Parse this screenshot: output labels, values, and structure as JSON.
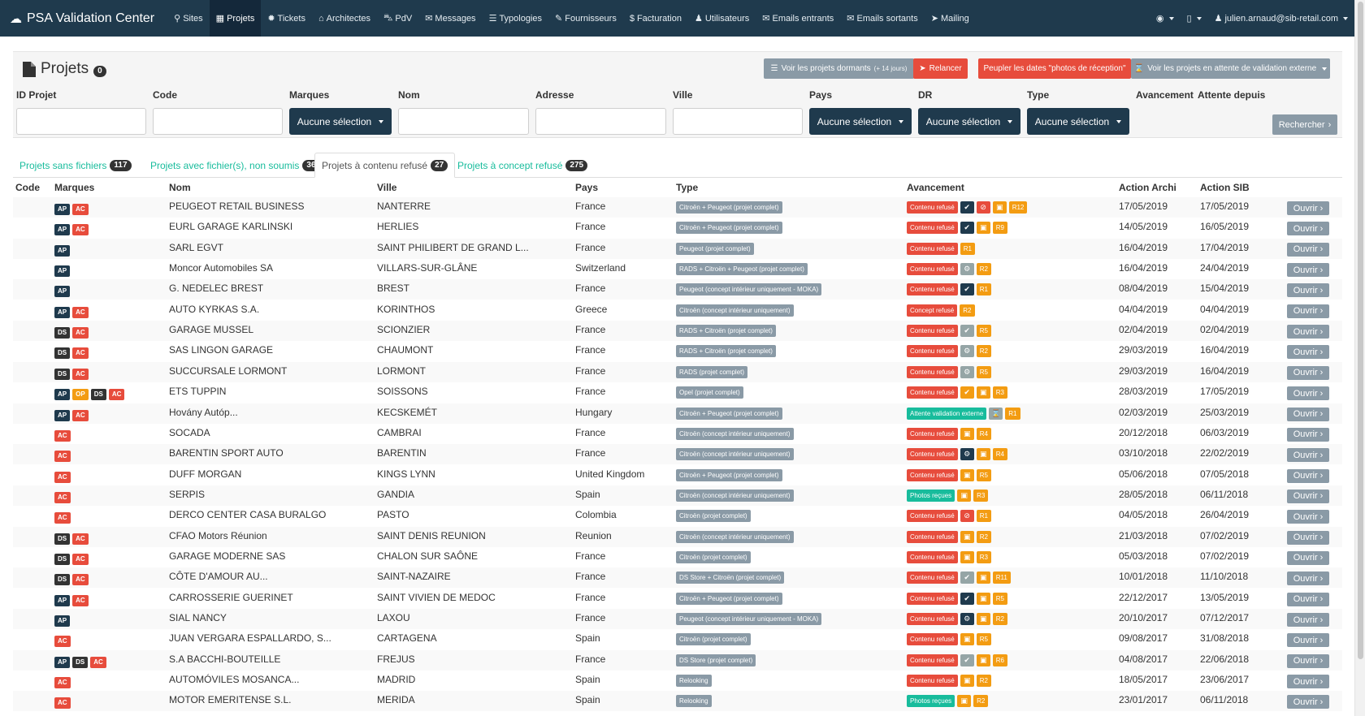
{
  "app": {
    "title": "PSA Validation Center"
  },
  "nav": {
    "items": [
      {
        "label": "Sites",
        "icon": "map-marker-icon",
        "glyph": "⚲"
      },
      {
        "label": "Projets",
        "icon": "table-icon",
        "glyph": "▦"
      },
      {
        "label": "Tickets",
        "icon": "ticket-icon",
        "glyph": "✹"
      },
      {
        "label": "Architectes",
        "icon": "university-icon",
        "glyph": "⌂"
      },
      {
        "label": "PdV",
        "icon": "car-icon",
        "glyph": "⛍"
      },
      {
        "label": "Messages",
        "icon": "comment-icon",
        "glyph": "✉"
      },
      {
        "label": "Typologies",
        "icon": "list-icon",
        "glyph": "☰"
      },
      {
        "label": "Fournisseurs",
        "icon": "wrench-icon",
        "glyph": "✎"
      },
      {
        "label": "Facturation",
        "icon": "dollar-icon",
        "glyph": "$"
      },
      {
        "label": "Utilisateurs",
        "icon": "user-icon",
        "glyph": "♟"
      },
      {
        "label": "Emails entrants",
        "icon": "envelope-in-icon",
        "glyph": "✉"
      },
      {
        "label": "Emails sortants",
        "icon": "envelope-out-icon",
        "glyph": "✉"
      },
      {
        "label": "Mailing",
        "icon": "paper-plane-icon",
        "glyph": "➤"
      }
    ],
    "eye_glyph": "◉",
    "mobile_glyph": "▯",
    "user_glyph": "♟",
    "user": "julien.arnaud@sib-retail.com"
  },
  "panel": {
    "title": "Projets",
    "count": "0",
    "btn_dormants": "Voir les projets dormants",
    "btn_dormants_note": "(+ 14 jours)",
    "btn_relancer": "Relancer",
    "btn_peupler": "Peupler les dates \"photos de réception\"",
    "btn_attente": "Voir les projets en attente de validation externe"
  },
  "filters": {
    "id_projet": "ID Projet",
    "code": "Code",
    "marques": "Marques",
    "nom": "Nom",
    "adresse": "Adresse",
    "ville": "Ville",
    "pays": "Pays",
    "dr": "DR",
    "type": "Type",
    "avancement": "Avancement",
    "attente": "Attente depuis",
    "select_placeholder": "Aucune sélection",
    "search_button": "Rechercher"
  },
  "tabs": [
    {
      "label": "Projets sans fichiers",
      "count": "117"
    },
    {
      "label": "Projets avec fichier(s), non soumis",
      "count": "36"
    },
    {
      "label": "Projets à contenu refusé",
      "count": "27"
    },
    {
      "label": "Projets à concept refusé",
      "count": "275"
    }
  ],
  "table": {
    "headers": {
      "code": "Code",
      "marques": "Marques",
      "nom": "Nom",
      "ville": "Ville",
      "pays": "Pays",
      "type": "Type",
      "avancement": "Avancement",
      "action_archi": "Action Archi",
      "action_sib": "Action SIB"
    },
    "open_label": "Ouvrir",
    "rows": [
      {
        "marques": [
          "AP",
          "AC"
        ],
        "nom": "PEUGEOT RETAIL BUSINESS",
        "ville": "NANTERRE",
        "pays": "France",
        "type": "Citroën + Peugeot (projet complet)",
        "status": "Contenu refusé",
        "status_color": "red",
        "icons": [
          "check",
          "ban",
          "image"
        ],
        "r": "R12",
        "archi": "17/05/2019",
        "sib": "17/05/2019"
      },
      {
        "marques": [
          "AP",
          "AC"
        ],
        "nom": "EURL GARAGE KARLINSKI",
        "ville": "HERLIES",
        "pays": "France",
        "type": "Citroën + Peugeot (projet complet)",
        "status": "Contenu refusé",
        "status_color": "red",
        "icons": [
          "check",
          "image"
        ],
        "r": "R9",
        "archi": "14/05/2019",
        "sib": "16/05/2019"
      },
      {
        "marques": [
          "AP"
        ],
        "nom": "SARL EGVT",
        "ville": "SAINT PHILIBERT DE GRAND L...",
        "pays": "France",
        "type": "Peugeot (projet complet)",
        "status": "Contenu refusé",
        "status_color": "red",
        "icons": [],
        "r": "R1",
        "archi": "16/04/2019",
        "sib": "17/04/2019"
      },
      {
        "marques": [
          "AP"
        ],
        "nom": "Moncor Automobiles SA",
        "ville": "VILLARS-SUR-GLÂNE",
        "pays": "Switzerland",
        "type": "RADS + Citroën + Peugeot (projet complet)",
        "status": "Contenu refusé",
        "status_color": "red",
        "icons": [
          "gear"
        ],
        "r": "R2",
        "archi": "16/04/2019",
        "sib": "24/04/2019"
      },
      {
        "marques": [
          "AP"
        ],
        "nom": "G. NEDELEC BREST",
        "ville": "BREST",
        "pays": "France",
        "type": "Peugeot (concept intérieur uniquement - MOKA)",
        "status": "Contenu refusé",
        "status_color": "red",
        "icons": [
          "check"
        ],
        "r": "R1",
        "archi": "08/04/2019",
        "sib": "15/04/2019"
      },
      {
        "marques": [
          "AP",
          "AC"
        ],
        "nom": "AUTO KYRKAS S.A.",
        "ville": "KORINTHOS",
        "pays": "Greece",
        "type": "Citroën (concept intérieur uniquement)",
        "status": "Concept refusé",
        "status_color": "red",
        "icons": [],
        "r": "R2",
        "archi": "04/04/2019",
        "sib": "04/04/2019"
      },
      {
        "marques": [
          "DS",
          "AC"
        ],
        "nom": "GARAGE MUSSEL",
        "ville": "SCIONZIER",
        "pays": "France",
        "type": "RADS + Citroën (projet complet)",
        "status": "Contenu refusé",
        "status_color": "red",
        "icons": [
          "check-gray"
        ],
        "r": "R5",
        "archi": "02/04/2019",
        "sib": "02/04/2019"
      },
      {
        "marques": [
          "DS",
          "AC"
        ],
        "nom": "SAS LINGON GARAGE",
        "ville": "CHAUMONT",
        "pays": "France",
        "type": "RADS + Citroën (projet complet)",
        "status": "Contenu refusé",
        "status_color": "red",
        "icons": [
          "gear"
        ],
        "r": "R2",
        "archi": "29/03/2019",
        "sib": "16/04/2019"
      },
      {
        "marques": [
          "DS",
          "AC"
        ],
        "nom": "SUCCURSALE LORMONT",
        "ville": "LORMONT",
        "pays": "France",
        "type": "RADS (projet complet)",
        "status": "Contenu refusé",
        "status_color": "red",
        "icons": [
          "gear"
        ],
        "r": "R5",
        "archi": "29/03/2019",
        "sib": "16/04/2019"
      },
      {
        "marques": [
          "AP",
          "OP",
          "DS",
          "AC"
        ],
        "nom": "ETS TUPPIN",
        "ville": "SOISSONS",
        "pays": "France",
        "type": "Opel (projet complet)",
        "status": "Contenu refusé",
        "status_color": "red",
        "icons": [
          "check-amber",
          "image"
        ],
        "r": "R3",
        "archi": "28/03/2019",
        "sib": "17/05/2019"
      },
      {
        "marques": [
          "AP",
          "AC"
        ],
        "nom": "Hovány Autóp...",
        "ville": "KECSKEMÉT",
        "pays": "Hungary",
        "type": "Citroën + Peugeot (projet complet)",
        "status": "Attente validation externe",
        "status_color": "green",
        "icons": [
          "hourglass"
        ],
        "r": "R1",
        "archi": "02/03/2019",
        "sib": "25/03/2019"
      },
      {
        "marques": [
          "AC"
        ],
        "nom": "SOCADA",
        "ville": "CAMBRAI",
        "pays": "France",
        "type": "Citroën (concept intérieur uniquement)",
        "status": "Contenu refusé",
        "status_color": "red",
        "icons": [
          "image"
        ],
        "r": "R4",
        "archi": "20/12/2018",
        "sib": "06/03/2019"
      },
      {
        "marques": [
          "AC"
        ],
        "nom": "BARENTIN SPORT AUTO",
        "ville": "BARENTIN",
        "pays": "France",
        "type": "Citroën (concept intérieur uniquement)",
        "status": "Contenu refusé",
        "status_color": "red",
        "icons": [
          "gear-navy",
          "image"
        ],
        "r": "R4",
        "archi": "03/10/2018",
        "sib": "22/02/2019"
      },
      {
        "marques": [
          "AC"
        ],
        "nom": "DUFF MORGAN",
        "ville": "KINGS LYNN",
        "pays": "United Kingdom",
        "type": "Citroën + Peugeot (projet complet)",
        "status": "Contenu refusé",
        "status_color": "red",
        "icons": [
          "image"
        ],
        "r": "R5",
        "archi": "05/06/2018",
        "sib": "07/05/2018"
      },
      {
        "marques": [
          "AC"
        ],
        "nom": "SERPIS",
        "ville": "GANDIA",
        "pays": "Spain",
        "type": "Citroën (concept intérieur uniquement)",
        "status": "Photos reçues",
        "status_color": "green",
        "icons": [
          "image"
        ],
        "r": "R3",
        "archi": "28/05/2018",
        "sib": "06/11/2018"
      },
      {
        "marques": [
          "AC"
        ],
        "nom": "DERCO CENTER CASA BURALGO",
        "ville": "PASTO",
        "pays": "Colombia",
        "type": "Citroën (projet complet)",
        "status": "Contenu refusé",
        "status_color": "red",
        "icons": [
          "ban"
        ],
        "r": "R1",
        "archi": "04/05/2018",
        "sib": "26/04/2019"
      },
      {
        "marques": [
          "DS",
          "AC"
        ],
        "nom": "CFAO Motors Réunion",
        "ville": "SAINT DENIS REUNION",
        "pays": "Reunion",
        "type": "Citroën (concept intérieur uniquement)",
        "status": "Contenu refusé",
        "status_color": "red",
        "icons": [
          "image"
        ],
        "r": "R2",
        "archi": "21/03/2018",
        "sib": "07/02/2019"
      },
      {
        "marques": [
          "DS",
          "AC"
        ],
        "nom": "GARAGE MODERNE SAS",
        "ville": "CHALON SUR SAÔNE",
        "pays": "France",
        "type": "Citroën (projet complet)",
        "status": "Contenu refusé",
        "status_color": "red",
        "icons": [
          "image"
        ],
        "r": "R3",
        "archi": "05/03/2018",
        "sib": "07/02/2019"
      },
      {
        "marques": [
          "DS",
          "AC"
        ],
        "nom": "CÔTE D'AMOUR AU...",
        "ville": "SAINT-NAZAIRE",
        "pays": "France",
        "type": "DS Store + Citroën (projet complet)",
        "status": "Contenu refusé",
        "status_color": "red",
        "icons": [
          "check-gray",
          "image"
        ],
        "r": "R11",
        "archi": "10/01/2018",
        "sib": "11/10/2018"
      },
      {
        "marques": [
          "AP",
          "AC"
        ],
        "nom": "CARROSSERIE GUERINET",
        "ville": "SAINT VIVIEN DE MEDOC",
        "pays": "France",
        "type": "Citroën + Peugeot (projet complet)",
        "status": "Contenu refusé",
        "status_color": "red",
        "icons": [
          "check",
          "image"
        ],
        "r": "R5",
        "archi": "22/12/2017",
        "sib": "13/05/2019"
      },
      {
        "marques": [
          "AP"
        ],
        "nom": "SIAL NANCY",
        "ville": "LAXOU",
        "pays": "France",
        "type": "Peugeot (concept intérieur uniquement - MOKA)",
        "status": "Contenu refusé",
        "status_color": "red",
        "icons": [
          "gear-navy",
          "image"
        ],
        "r": "R2",
        "archi": "20/10/2017",
        "sib": "07/12/2017"
      },
      {
        "marques": [
          "AC"
        ],
        "nom": "JUAN VERGARA ESPALLARDO, S...",
        "ville": "CARTAGENA",
        "pays": "Spain",
        "type": "Citroën (projet complet)",
        "status": "Contenu refusé",
        "status_color": "red",
        "icons": [
          "image"
        ],
        "r": "R5",
        "archi": "09/08/2017",
        "sib": "31/08/2018"
      },
      {
        "marques": [
          "AP",
          "DS",
          "AC"
        ],
        "nom": "S.A BACCHI-BOUTEILLE",
        "ville": "FREJUS",
        "pays": "France",
        "type": "DS Store (projet complet)",
        "status": "Contenu refusé",
        "status_color": "red",
        "icons": [
          "check-gray",
          "image"
        ],
        "r": "R6",
        "archi": "04/08/2017",
        "sib": "22/06/2018"
      },
      {
        "marques": [
          "AC"
        ],
        "nom": "AUTOMÓVILES MOSANCA...",
        "ville": "MADRID",
        "pays": "Spain",
        "type": "Relooking",
        "status": "Contenu refusé",
        "status_color": "red",
        "icons": [
          "image"
        ],
        "r": "R2",
        "archi": "18/05/2017",
        "sib": "23/06/2017"
      },
      {
        "marques": [
          "AC"
        ],
        "nom": "MOTOR EMERITENSE S.L.",
        "ville": "MERIDA",
        "pays": "Spain",
        "type": "Relooking",
        "status": "Photos reçues",
        "status_color": "green",
        "icons": [
          "image"
        ],
        "r": "R2",
        "archi": "23/01/2017",
        "sib": "06/11/2018"
      }
    ]
  }
}
